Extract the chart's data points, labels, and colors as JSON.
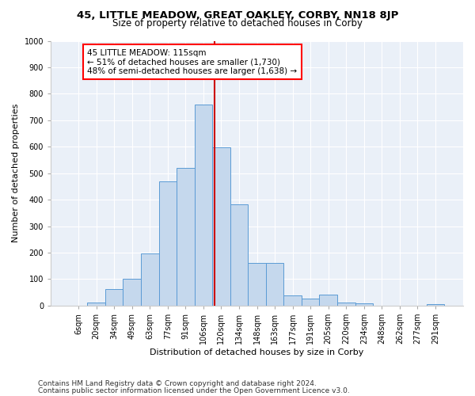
{
  "title": "45, LITTLE MEADOW, GREAT OAKLEY, CORBY, NN18 8JP",
  "subtitle": "Size of property relative to detached houses in Corby",
  "xlabel": "Distribution of detached houses by size in Corby",
  "ylabel": "Number of detached properties",
  "footer1": "Contains HM Land Registry data © Crown copyright and database right 2024.",
  "footer2": "Contains public sector information licensed under the Open Government Licence v3.0.",
  "annotation_line1": "45 LITTLE MEADOW: 115sqm",
  "annotation_line2": "← 51% of detached houses are smaller (1,730)",
  "annotation_line3": "48% of semi-detached houses are larger (1,638) →",
  "bar_labels": [
    "6sqm",
    "20sqm",
    "34sqm",
    "49sqm",
    "63sqm",
    "77sqm",
    "91sqm",
    "106sqm",
    "120sqm",
    "134sqm",
    "148sqm",
    "163sqm",
    "177sqm",
    "191sqm",
    "205sqm",
    "220sqm",
    "234sqm",
    "248sqm",
    "262sqm",
    "277sqm",
    "291sqm"
  ],
  "bar_values": [
    0,
    12,
    62,
    100,
    198,
    470,
    520,
    760,
    597,
    383,
    160,
    160,
    40,
    28,
    43,
    12,
    8,
    0,
    0,
    0,
    5
  ],
  "bar_color": "#c5d8ed",
  "bar_edge_color": "#5b9bd5",
  "vline_x": 7.64,
  "vline_color": "#cc0000",
  "ylim": [
    0,
    1000
  ],
  "yticks": [
    0,
    100,
    200,
    300,
    400,
    500,
    600,
    700,
    800,
    900,
    1000
  ],
  "bg_color": "#eaf0f8",
  "grid_color": "#ffffff",
  "title_fontsize": 9.5,
  "subtitle_fontsize": 8.5,
  "xlabel_fontsize": 8,
  "ylabel_fontsize": 8,
  "tick_fontsize": 7,
  "annotation_fontsize": 7.5,
  "footer_fontsize": 6.5
}
